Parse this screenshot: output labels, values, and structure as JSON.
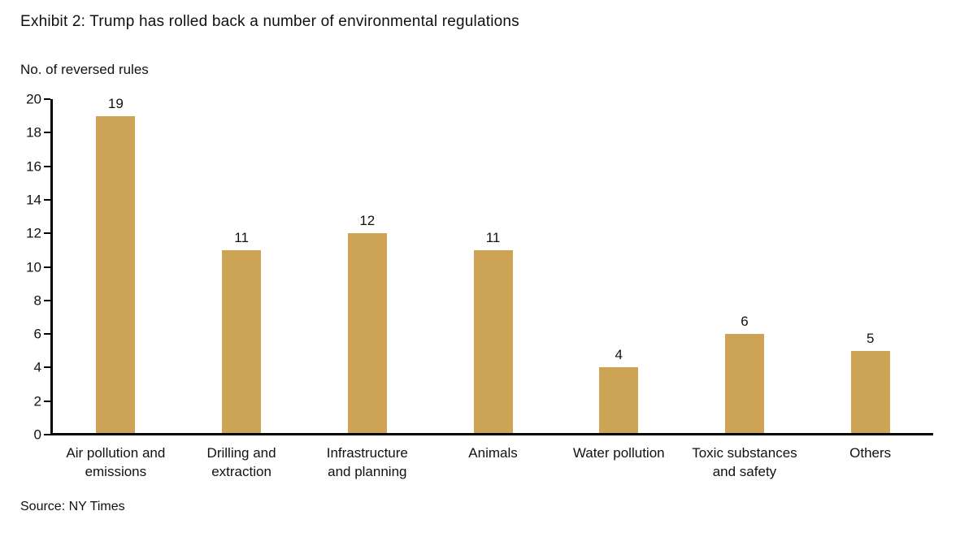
{
  "chart_data": {
    "type": "bar",
    "title": "Exhibit 2: Trump has rolled back a number of environmental regulations",
    "ylabel": "No. of reversed rules",
    "xlabel": "",
    "source": "Source: NY Times",
    "categories": [
      "Air pollution and\nemissions",
      "Drilling and\nextraction",
      "Infrastructure\nand planning",
      "Animals",
      "Water pollution",
      "Toxic substances\nand safety",
      "Others"
    ],
    "values": [
      19,
      11,
      12,
      11,
      4,
      6,
      5
    ],
    "ylim": [
      0,
      20
    ],
    "yticks": [
      0,
      2,
      4,
      6,
      8,
      10,
      12,
      14,
      16,
      18,
      20
    ],
    "grid": false,
    "legend": "none",
    "bar_color": "#CDA355",
    "axis_color": "#000000",
    "text_color": "#111111"
  }
}
